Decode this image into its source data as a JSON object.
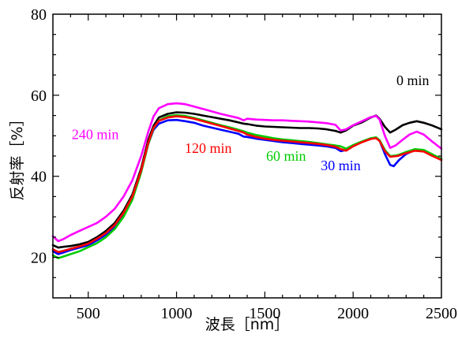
{
  "chart_data": {
    "type": "line",
    "xlabel": "波長［nm］",
    "ylabel": "反射率［%］",
    "xlim": [
      300,
      2500
    ],
    "ylim": [
      10,
      80
    ],
    "x_ticks": [
      500,
      1000,
      1500,
      2000,
      2500
    ],
    "y_ticks": [
      20,
      40,
      60,
      80
    ],
    "grid": false,
    "series": [
      {
        "name": "0 min",
        "color": "#000000",
        "x": [
          300,
          330,
          360,
          400,
          450,
          500,
          550,
          600,
          650,
          700,
          750,
          800,
          840,
          870,
          900,
          950,
          1000,
          1050,
          1100,
          1150,
          1200,
          1250,
          1300,
          1350,
          1380,
          1400,
          1450,
          1500,
          1550,
          1600,
          1650,
          1700,
          1750,
          1800,
          1850,
          1900,
          1930,
          1960,
          2000,
          2050,
          2100,
          2130,
          2150,
          2180,
          2210,
          2240,
          2280,
          2320,
          2360,
          2400,
          2450,
          2500
        ],
        "y": [
          23,
          22.4,
          22.6,
          22.8,
          23.2,
          23.8,
          25,
          26.5,
          28.5,
          31.5,
          35.5,
          42,
          49,
          52.5,
          54.5,
          55.4,
          55.8,
          55.7,
          55.4,
          55,
          54.6,
          54.2,
          53.8,
          53.3,
          53,
          52.9,
          52.5,
          52.3,
          52.2,
          52.1,
          52,
          51.9,
          51.9,
          51.8,
          51.6,
          51.2,
          50.8,
          51.3,
          52.5,
          53.3,
          54.5,
          55,
          54.2,
          52.2,
          50.8,
          51.5,
          52.6,
          53.2,
          53.6,
          53.2,
          52.5,
          51.6
        ]
      },
      {
        "name": "30 min",
        "color": "#0000ff",
        "x": [
          300,
          330,
          360,
          400,
          450,
          500,
          550,
          600,
          650,
          700,
          750,
          800,
          840,
          870,
          900,
          950,
          1000,
          1050,
          1100,
          1150,
          1200,
          1250,
          1300,
          1350,
          1380,
          1400,
          1450,
          1500,
          1550,
          1600,
          1650,
          1700,
          1750,
          1800,
          1850,
          1900,
          1930,
          1960,
          2000,
          2050,
          2100,
          2130,
          2150,
          2180,
          2210,
          2230,
          2260,
          2300,
          2350,
          2400,
          2450,
          2500
        ],
        "y": [
          21.5,
          20.8,
          21.2,
          21.8,
          22.4,
          23,
          24.2,
          25.6,
          27.5,
          30.5,
          34.6,
          41.3,
          48,
          51.5,
          53,
          53.8,
          53.9,
          53.6,
          53.2,
          52.5,
          52,
          51.5,
          51,
          50.5,
          49.8,
          49.7,
          49.3,
          49,
          48.7,
          48.4,
          48.2,
          48,
          47.8,
          47.6,
          47.4,
          47,
          46.2,
          46.5,
          47.5,
          48.5,
          49.3,
          49.5,
          48.8,
          45.5,
          42.8,
          42.5,
          44,
          45.5,
          46.5,
          46.3,
          45.2,
          44
        ]
      },
      {
        "name": "60 min",
        "color": "#00cc00",
        "x": [
          300,
          330,
          360,
          400,
          450,
          500,
          550,
          600,
          650,
          700,
          750,
          800,
          840,
          870,
          900,
          950,
          1000,
          1050,
          1100,
          1150,
          1200,
          1250,
          1300,
          1350,
          1380,
          1400,
          1450,
          1500,
          1550,
          1600,
          1650,
          1700,
          1750,
          1800,
          1850,
          1900,
          1930,
          1960,
          2000,
          2050,
          2100,
          2130,
          2150,
          2180,
          2210,
          2250,
          2300,
          2350,
          2400,
          2450,
          2500
        ],
        "y": [
          20.5,
          19.8,
          20.2,
          20.8,
          21.5,
          22.5,
          23.5,
          25,
          27,
          30,
          34.2,
          41,
          48,
          51.8,
          53.8,
          54.8,
          55.1,
          54.9,
          54.4,
          53.8,
          53.2,
          52.6,
          52.1,
          51.5,
          51.1,
          50.8,
          50.2,
          49.8,
          49.4,
          49.1,
          48.9,
          48.7,
          48.5,
          48.2,
          47.9,
          47.6,
          47.4,
          46.8,
          47.7,
          48.6,
          49.4,
          49.6,
          48.9,
          46.5,
          45,
          45.2,
          46,
          46.7,
          46.5,
          45.4,
          44.3
        ]
      },
      {
        "name": "120 min",
        "color": "#ff0000",
        "x": [
          300,
          330,
          360,
          400,
          450,
          500,
          550,
          600,
          650,
          700,
          750,
          800,
          840,
          870,
          900,
          950,
          1000,
          1050,
          1100,
          1150,
          1200,
          1250,
          1300,
          1350,
          1380,
          1400,
          1450,
          1500,
          1550,
          1600,
          1650,
          1700,
          1750,
          1800,
          1850,
          1900,
          1930,
          1960,
          2000,
          2050,
          2100,
          2130,
          2150,
          2180,
          2210,
          2250,
          2300,
          2350,
          2400,
          2450,
          2500
        ],
        "y": [
          22,
          21.3,
          21.6,
          22.1,
          22.7,
          23.4,
          24.6,
          26,
          28,
          31,
          35,
          41.5,
          48.3,
          52,
          53.7,
          54.5,
          54.8,
          54.6,
          54.2,
          53.6,
          53,
          52.4,
          51.8,
          51.2,
          50.8,
          50.3,
          49.7,
          49.3,
          49,
          48.8,
          48.6,
          48.4,
          48.2,
          48,
          47.7,
          47.3,
          46.7,
          46.3,
          47.4,
          48.4,
          49.2,
          49.4,
          48.7,
          46.2,
          44.8,
          45,
          45.7,
          46.3,
          46.1,
          45,
          44
        ]
      },
      {
        "name": "240 min",
        "color": "#ff00ff",
        "x": [
          300,
          330,
          360,
          400,
          450,
          500,
          550,
          600,
          650,
          700,
          750,
          800,
          840,
          870,
          900,
          950,
          1000,
          1050,
          1100,
          1150,
          1200,
          1250,
          1300,
          1350,
          1380,
          1400,
          1450,
          1500,
          1550,
          1600,
          1650,
          1700,
          1750,
          1800,
          1850,
          1900,
          1930,
          1960,
          2000,
          2050,
          2100,
          2130,
          2150,
          2180,
          2210,
          2240,
          2280,
          2320,
          2360,
          2400,
          2450,
          2500
        ],
        "y": [
          25.2,
          24,
          24.5,
          25.5,
          26.5,
          27.5,
          28.5,
          30,
          32,
          35,
          39,
          45,
          51,
          54.8,
          56.8,
          57.8,
          58,
          57.8,
          57.2,
          56.6,
          56,
          55.4,
          54.9,
          54.4,
          53.8,
          54.2,
          54,
          53.9,
          53.8,
          53.8,
          53.7,
          53.6,
          53.5,
          53.3,
          53.1,
          52.7,
          51.3,
          51.6,
          52.6,
          53.6,
          54.6,
          54.9,
          54,
          50,
          47,
          47.6,
          49,
          50.3,
          51,
          50.3,
          48.5,
          46.8
        ]
      }
    ]
  }
}
